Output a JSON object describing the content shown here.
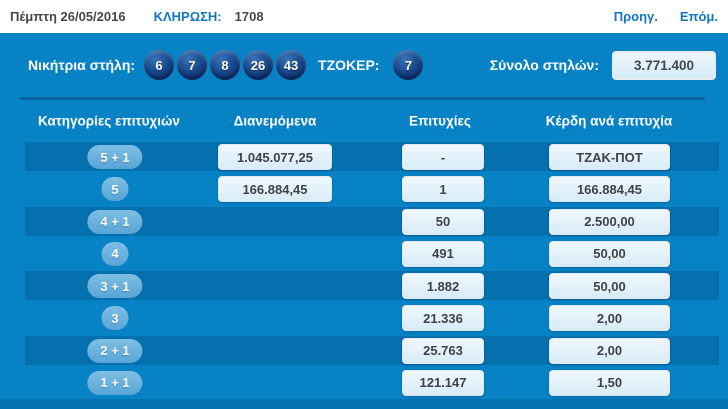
{
  "topbar": {
    "date": "Πέμπτη 26/05/2016",
    "draw_label": "ΚΛΗΡΩΣΗ:",
    "draw_number": "1708",
    "prev_label": "Προηγ.",
    "next_label": "Επόμ."
  },
  "panel": {
    "winning_label": "Νικήτρια στήλη:",
    "winning_numbers": [
      "6",
      "7",
      "8",
      "26",
      "43"
    ],
    "joker_label": "ΤΖΟΚΕΡ:",
    "joker_number": "7",
    "total_label": "Σύνολο στηλών:",
    "total_value": "3.771.400"
  },
  "table": {
    "headers": [
      "Κατηγορίες επιτυχιών",
      "Διανεμόμενα",
      "Επιτυχίες",
      "Κέρδη ανά επιτυχία"
    ],
    "rows": [
      {
        "category": "5 + 1",
        "distributed": "1.045.077,25",
        "winners": "-",
        "prize": "ΤΖΑΚ-ΠΟΤ",
        "striped": true
      },
      {
        "category": "5",
        "distributed": "166.884,45",
        "winners": "1",
        "prize": "166.884,45",
        "striped": false
      },
      {
        "category": "4 + 1",
        "distributed": "",
        "winners": "50",
        "prize": "2.500,00",
        "striped": true
      },
      {
        "category": "4",
        "distributed": "",
        "winners": "491",
        "prize": "50,00",
        "striped": false
      },
      {
        "category": "3 + 1",
        "distributed": "",
        "winners": "1.882",
        "prize": "50,00",
        "striped": true
      },
      {
        "category": "3",
        "distributed": "",
        "winners": "21.336",
        "prize": "2,00",
        "striped": false
      },
      {
        "category": "2 + 1",
        "distributed": "",
        "winners": "25.763",
        "prize": "2,00",
        "striped": true
      },
      {
        "category": "1 + 1",
        "distributed": "",
        "winners": "121.147",
        "prize": "1,50",
        "striped": false
      }
    ]
  },
  "colors": {
    "panel_blue": "#0782c5",
    "stripe_blue": "#0470ae",
    "divider_blue": "#07639c",
    "ball_navy": "#0e3574",
    "pill_light_blue": "#6bb2dd",
    "box_light": "#ddeef8",
    "accent_link_blue": "#1377bf",
    "dark_text": "#45484e"
  }
}
